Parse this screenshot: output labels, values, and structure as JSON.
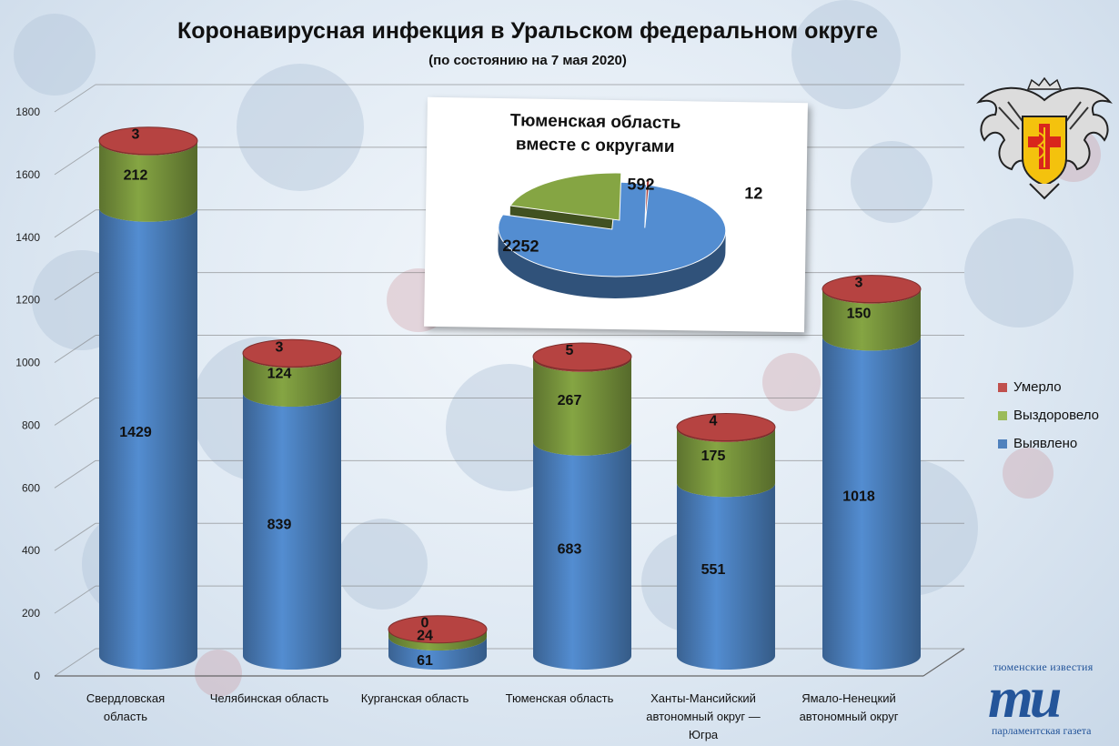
{
  "title": "Коронавирусная инфекция в Уральском федеральном округе",
  "subtitle": "(по состоянию на 7 мая 2020)",
  "colors": {
    "detected": "#4a7ebb",
    "recovered": "#77933c",
    "died": "#953735"
  },
  "legend": [
    {
      "label": "Умерло",
      "color": "#c0504d"
    },
    {
      "label": "Выздоровело",
      "color": "#9bbb59"
    },
    {
      "label": "Выявлено",
      "color": "#4f81bd"
    }
  ],
  "chart_data": [
    {
      "type": "bar",
      "subtype": "stacked-3d-cylinder",
      "title": "Коронавирусная инфекция в Уральском федеральном округе",
      "categories": [
        [
          "Свердловская",
          "область"
        ],
        [
          "Челябинская область"
        ],
        [
          "Курганская область"
        ],
        [
          "Тюменская область"
        ],
        [
          "Ханты-Мансийский",
          "автономный округ —",
          "Югра"
        ],
        [
          "Ямало-Ненецкий",
          "автономный округ"
        ]
      ],
      "series": [
        {
          "name": "Выявлено",
          "values": [
            1429,
            839,
            61,
            683,
            551,
            1018
          ]
        },
        {
          "name": "Выздоровело",
          "values": [
            212,
            124,
            24,
            267,
            175,
            150
          ]
        },
        {
          "name": "Умерло",
          "values": [
            3,
            3,
            0,
            5,
            4,
            3
          ]
        }
      ],
      "ylim": [
        0,
        1800
      ],
      "yticks": [
        0,
        200,
        400,
        600,
        800,
        1000,
        1200,
        1400,
        1600,
        1800
      ],
      "grid": true,
      "legend_position": "right"
    },
    {
      "type": "pie",
      "title": [
        "Тюменская область",
        "вместе с округами"
      ],
      "labels": [
        "Выявлено",
        "Выздоровело",
        "Умерло"
      ],
      "values": [
        2252,
        592,
        12
      ]
    }
  ],
  "brand": {
    "top": "тюменские известия",
    "letters": "ти",
    "bottom": "парламентская газета"
  }
}
